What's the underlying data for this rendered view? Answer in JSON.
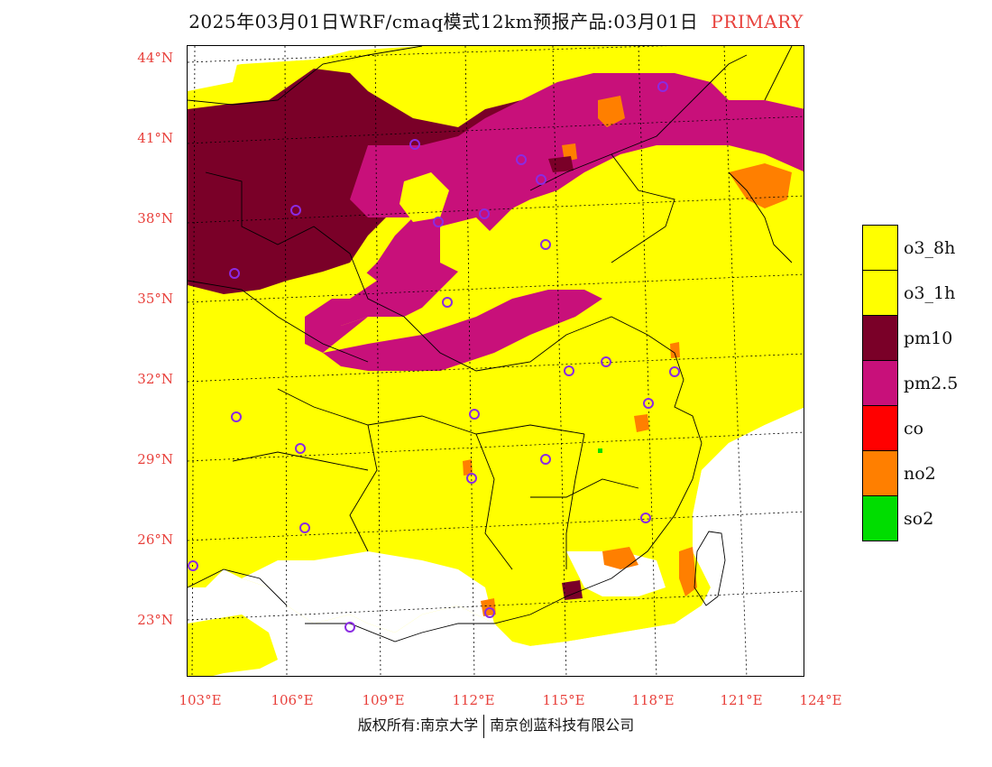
{
  "header": {
    "title": "2025年03月01日WRF/cmaq模式12km预报产品:03月01日",
    "tag": "PRIMARY"
  },
  "axes": {
    "lat_labels": [
      "44°N",
      "41°N",
      "38°N",
      "35°N",
      "32°N",
      "29°N",
      "26°N",
      "23°N"
    ],
    "lon_labels": [
      "103°E",
      "106°E",
      "109°E",
      "112°E",
      "115°E",
      "118°E",
      "121°E",
      "124°E"
    ]
  },
  "legend": {
    "items": [
      {
        "label": "o3_8h",
        "color": "#ffff00"
      },
      {
        "label": "o3_1h",
        "color": "#ffff00"
      },
      {
        "label": "pm10",
        "color": "#7a0028"
      },
      {
        "label": "pm2.5",
        "color": "#c8107a"
      },
      {
        "label": "co",
        "color": "#ff0000"
      },
      {
        "label": "no2",
        "color": "#ff7f00"
      },
      {
        "label": "so2",
        "color": "#00dd00"
      }
    ]
  },
  "footer": {
    "left": "版权所有:南京大学",
    "right": "南京创蓝科技有限公司"
  },
  "map": {
    "colors": {
      "o3": "#ffff00",
      "pm10": "#7a0028",
      "pm25": "#c8107a",
      "no2": "#ff7f00",
      "so2": "#00dd00",
      "station": "#8a2be2"
    }
  }
}
